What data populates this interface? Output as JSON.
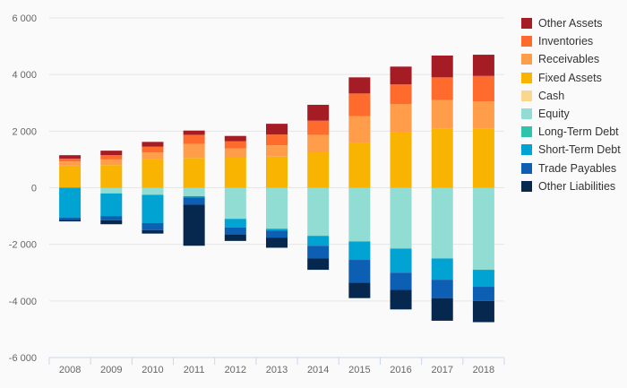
{
  "chart_data": {
    "type": "bar",
    "stacked": true,
    "categories": [
      "2008",
      "2009",
      "2010",
      "2011",
      "2012",
      "2013",
      "2014",
      "2015",
      "2016",
      "2017",
      "2018"
    ],
    "ylim": [
      -6000,
      6000
    ],
    "yticks": [
      -6000,
      -4000,
      -2000,
      0,
      2000,
      4000,
      6000
    ],
    "ytick_labels": [
      "-6 000",
      "-4 000",
      "-2 000",
      "0",
      "2 000",
      "4 000",
      "6 000"
    ],
    "grid": true,
    "legend_position": "right",
    "asset_series": [
      {
        "name": "Fixed Assets",
        "color": "#f8b400",
        "values": [
          780,
          800,
          1000,
          1050,
          1060,
          1100,
          1250,
          1580,
          1950,
          2100,
          2100
        ]
      },
      {
        "name": "Receivables",
        "color": "#ff9d4a",
        "values": [
          150,
          200,
          250,
          500,
          330,
          400,
          620,
          950,
          1000,
          1000,
          950
        ]
      },
      {
        "name": "Inventories",
        "color": "#fe6b2c",
        "values": [
          100,
          150,
          200,
          320,
          250,
          380,
          500,
          800,
          700,
          800,
          900
        ]
      },
      {
        "name": "Other Assets",
        "color": "#a51c24",
        "values": [
          120,
          160,
          170,
          150,
          190,
          380,
          560,
          570,
          630,
          770,
          750
        ]
      }
    ],
    "liability_series": [
      {
        "name": "Equity",
        "color": "#91ddd4",
        "values": [
          0,
          200,
          250,
          300,
          1100,
          1450,
          1700,
          1900,
          2150,
          2500,
          2900
        ]
      },
      {
        "name": "Short-Term Debt",
        "color": "#00a3d1",
        "values": [
          1050,
          800,
          1000,
          50,
          300,
          60,
          350,
          650,
          850,
          750,
          600
        ]
      },
      {
        "name": "Trade Payables",
        "color": "#0d5fb4",
        "values": [
          80,
          150,
          250,
          250,
          250,
          250,
          450,
          800,
          600,
          650,
          500
        ]
      },
      {
        "name": "Other Liabilities",
        "color": "#06284f",
        "values": [
          60,
          140,
          120,
          1450,
          230,
          360,
          400,
          550,
          700,
          800,
          750
        ]
      }
    ]
  },
  "legend": [
    {
      "name": "Other Assets",
      "color": "#a51c24"
    },
    {
      "name": "Inventories",
      "color": "#fe6b2c"
    },
    {
      "name": "Receivables",
      "color": "#ff9d4a"
    },
    {
      "name": "Fixed Assets",
      "color": "#f8b400"
    },
    {
      "name": "Cash",
      "color": "#fdd68e"
    },
    {
      "name": "Equity",
      "color": "#91ddd4"
    },
    {
      "name": "Long-Term Debt",
      "color": "#2fc2ad"
    },
    {
      "name": "Short-Term Debt",
      "color": "#00a3d1"
    },
    {
      "name": "Trade Payables",
      "color": "#0d5fb4"
    },
    {
      "name": "Other Liabilities",
      "color": "#06284f"
    }
  ]
}
